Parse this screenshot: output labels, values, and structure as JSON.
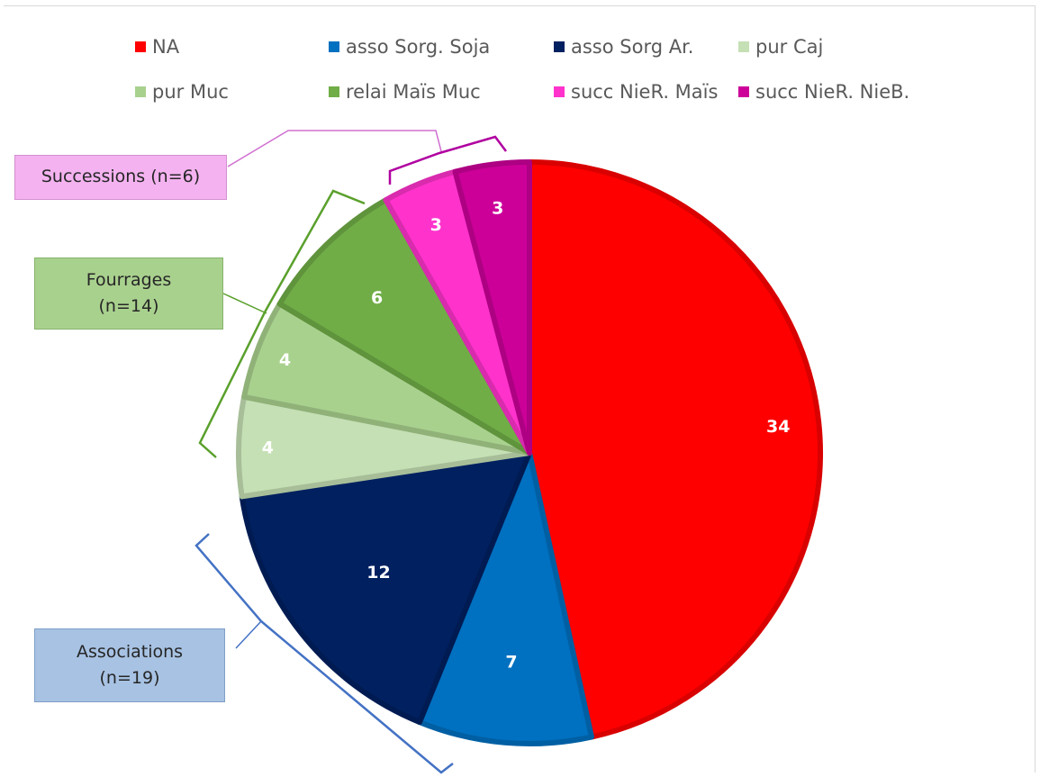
{
  "chart_data": {
    "type": "pie",
    "categories": [
      "NA",
      "asso Sorg. Soja",
      "asso Sorg Ar.",
      "pur Caj",
      "pur Muc",
      "relai Maïs Muc",
      "succ NieR. Maïs",
      "succ NieR. NieB."
    ],
    "values": [
      34,
      7,
      12,
      4,
      4,
      6,
      3,
      3
    ],
    "data_labels": [
      "34",
      "7",
      "12",
      "4",
      "4",
      "6",
      "3",
      "3"
    ],
    "colors": [
      "#ff0000",
      "#0070c0",
      "#002060",
      "#c5e0b4",
      "#a9d18e",
      "#70ad47",
      "#ff33cc",
      "#cc0099"
    ],
    "legend_position": "top",
    "legend": [
      "NA",
      "asso Sorg. Soja",
      "asso Sorg Ar.",
      "pur Caj",
      "pur Muc",
      "relai Maïs Muc",
      "succ NieR. Maïs",
      "succ NieR. NieB."
    ],
    "groups": [
      {
        "name": "Successions",
        "count": "(n=6)",
        "members": [
          "succ NieR. Maïs",
          "succ NieR. NieB."
        ],
        "color": "#f4b3f0",
        "bracket_color": "#b000a0"
      },
      {
        "name": "Fourrages",
        "count": "(n=14)",
        "members": [
          "pur Caj",
          "pur Muc",
          "relai Maïs Muc"
        ],
        "color": "#a9d18e",
        "bracket_color": "#5aa02c"
      },
      {
        "name": "Associations",
        "count": "(n=19)",
        "members": [
          "asso Sorg. Soja",
          "asso Sorg Ar."
        ],
        "color": "#a7c2e3",
        "bracket_color": "#4472c4"
      }
    ]
  }
}
